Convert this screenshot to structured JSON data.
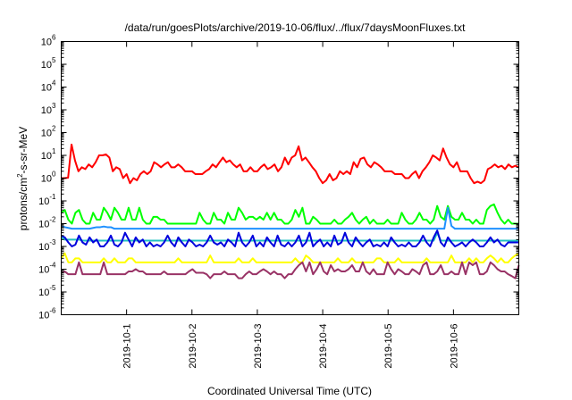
{
  "chart_data": {
    "type": "line",
    "title": "/data/run/goesPlots/archive/2019-10-06/flux/../flux/7daysMoonFluxes.txt",
    "xlabel": "Coordinated Universal Time (UTC)",
    "ylabel": "protons/cm²-s-sr-MeV",
    "ylabel_parts": [
      "protons/cm",
      "2",
      "-s-sr-MeV"
    ],
    "yscale": "log",
    "ylim_exp": [
      -6,
      6
    ],
    "xlim_days": [
      0,
      7
    ],
    "xticks": [
      {
        "day": 1,
        "label": "2019-10-1"
      },
      {
        "day": 2,
        "label": "2019-10-2"
      },
      {
        "day": 3,
        "label": "2019-10-3"
      },
      {
        "day": 4,
        "label": "2019-10-4"
      },
      {
        "day": 5,
        "label": "2019-10-5"
      },
      {
        "day": 6,
        "label": "2019-10-6"
      }
    ],
    "ytick_base": "10",
    "grid": false,
    "legend": "none",
    "series": [
      {
        "color": "#ff0000",
        "values": [
          1.0,
          1.0,
          1.05,
          30,
          6,
          2,
          3,
          2.5,
          4,
          3,
          5,
          10,
          10,
          11,
          8,
          2,
          3,
          2.5,
          1,
          1.5,
          0.6,
          1,
          0.8,
          1.5,
          2,
          1.5,
          2,
          5,
          4,
          3,
          4,
          5,
          3,
          3,
          4,
          3,
          2,
          2,
          2,
          1.5,
          1.5,
          1.5,
          2,
          2.5,
          4,
          3,
          5,
          8,
          5,
          6,
          4,
          3,
          4,
          2,
          2,
          3,
          2,
          2,
          3,
          4,
          2.5,
          3,
          4,
          2,
          3,
          8,
          4,
          8,
          10,
          25,
          6,
          8,
          5,
          3,
          2,
          1,
          0.6,
          0.8,
          1.5,
          0.8,
          1,
          2,
          1.5,
          2,
          1.5,
          5,
          3,
          7,
          8,
          4,
          3,
          5,
          4,
          3,
          2,
          2,
          2,
          1.5,
          1.5,
          1.5,
          1,
          1,
          1.5,
          2,
          1,
          2,
          3,
          5,
          10,
          8,
          6,
          20,
          8,
          4,
          3,
          5,
          2,
          2,
          2,
          1,
          0.6,
          0.7,
          0.6,
          0.8,
          2.5,
          3,
          4,
          3,
          3.5,
          2.5,
          4,
          3,
          3.5,
          3
        ]
      },
      {
        "color": "#00ff00",
        "values": [
          0.03,
          0.04,
          0.015,
          0.01,
          0.03,
          0.04,
          0.015,
          0.01,
          0.01,
          0.03,
          0.015,
          0.015,
          0.05,
          0.03,
          0.015,
          0.05,
          0.03,
          0.015,
          0.015,
          0.05,
          0.015,
          0.015,
          0.05,
          0.015,
          0.01,
          0.01,
          0.02,
          0.02,
          0.015,
          0.015,
          0.01,
          0.01,
          0.01,
          0.01,
          0.01,
          0.01,
          0.01,
          0.01,
          0.01,
          0.03,
          0.015,
          0.01,
          0.01,
          0.03,
          0.015,
          0.015,
          0.01,
          0.03,
          0.015,
          0.015,
          0.05,
          0.03,
          0.015,
          0.02,
          0.02,
          0.015,
          0.02,
          0.015,
          0.03,
          0.015,
          0.03,
          0.015,
          0.015,
          0.01,
          0.01,
          0.015,
          0.04,
          0.02,
          0.05,
          0.01,
          0.01,
          0.02,
          0.015,
          0.01,
          0.01,
          0.01,
          0.01,
          0.015,
          0.01,
          0.01,
          0.015,
          0.02,
          0.03,
          0.015,
          0.01,
          0.015,
          0.02,
          0.01,
          0.015,
          0.01,
          0.01,
          0.01,
          0.015,
          0.01,
          0.01,
          0.01,
          0.03,
          0.015,
          0.01,
          0.01,
          0.015,
          0.03,
          0.015,
          0.015,
          0.01,
          0.015,
          0.06,
          0.02,
          0.015,
          0.06,
          0.02,
          0.015,
          0.015,
          0.03,
          0.015,
          0.015,
          0.01,
          0.015,
          0.01,
          0.01,
          0.04,
          0.06,
          0.07,
          0.03,
          0.015,
          0.01,
          0.015,
          0.01,
          0.01,
          0.01
        ]
      },
      {
        "color": "#1e90ff",
        "values": [
          0.008,
          0.007,
          0.0065,
          0.006,
          0.006,
          0.006,
          0.006,
          0.006,
          0.006,
          0.0065,
          0.007,
          0.007,
          0.0075,
          0.007,
          0.007,
          0.006,
          0.006,
          0.006,
          0.006,
          0.006,
          0.006,
          0.006,
          0.006,
          0.006,
          0.006,
          0.006,
          0.006,
          0.006,
          0.006,
          0.006,
          0.006,
          0.006,
          0.006,
          0.006,
          0.006,
          0.006,
          0.006,
          0.006,
          0.006,
          0.006,
          0.006,
          0.006,
          0.006,
          0.006,
          0.006,
          0.006,
          0.006,
          0.006,
          0.006,
          0.006,
          0.006,
          0.006,
          0.006,
          0.006,
          0.006,
          0.006,
          0.006,
          0.006,
          0.006,
          0.006,
          0.006,
          0.006,
          0.006,
          0.006,
          0.006,
          0.006,
          0.006,
          0.006,
          0.006,
          0.006,
          0.006,
          0.006,
          0.006,
          0.006,
          0.006,
          0.006,
          0.006,
          0.006,
          0.006,
          0.006,
          0.006,
          0.006,
          0.006,
          0.006,
          0.006,
          0.006,
          0.006,
          0.006,
          0.006,
          0.006,
          0.006,
          0.006,
          0.006,
          0.006,
          0.006,
          0.006,
          0.006,
          0.006,
          0.006,
          0.006,
          0.006,
          0.006,
          0.006,
          0.006,
          0.006,
          0.006,
          0.006,
          0.006,
          0.006,
          0.05,
          0.008,
          0.006,
          0.006,
          0.006,
          0.006,
          0.006,
          0.006,
          0.006,
          0.006,
          0.006,
          0.006,
          0.006,
          0.006,
          0.006,
          0.006,
          0.006,
          0.006,
          0.006,
          0.006,
          0.006
        ]
      },
      {
        "color": "#20c0c0",
        "values": [
          0.0025,
          0.002,
          0.002,
          0.002,
          0.002,
          0.002,
          0.0018,
          0.0018,
          0.0018,
          0.0018,
          0.0018,
          0.0018,
          0.0018,
          0.0018,
          0.0018,
          0.0018,
          0.0018,
          0.0018,
          0.0018,
          0.0018,
          0.0018,
          0.0018,
          0.0018,
          0.0018,
          0.0018,
          0.0018,
          0.0018,
          0.0018,
          0.0018,
          0.0018,
          0.0018,
          0.0018,
          0.0018,
          0.0018,
          0.0018,
          0.0018,
          0.0018,
          0.0018,
          0.0018,
          0.0018,
          0.0018,
          0.0018,
          0.0018,
          0.0018,
          0.0018,
          0.0018,
          0.0018,
          0.0018,
          0.0018,
          0.0018,
          0.0018,
          0.0018,
          0.0018,
          0.0018,
          0.0018,
          0.0018,
          0.0018,
          0.0018,
          0.0018,
          0.0018,
          0.0018,
          0.0018,
          0.0018,
          0.0018,
          0.0018,
          0.0018,
          0.0018,
          0.0018,
          0.0018,
          0.0018,
          0.0018,
          0.0018,
          0.0018,
          0.0018,
          0.0018,
          0.0018,
          0.0018,
          0.0018,
          0.0018,
          0.0018,
          0.0018,
          0.0018,
          0.0018,
          0.0018,
          0.0018,
          0.0018,
          0.0018,
          0.0018,
          0.0018,
          0.0018,
          0.0018,
          0.0018,
          0.0018,
          0.0018,
          0.0018,
          0.0018,
          0.0018,
          0.0018,
          0.0018,
          0.0018,
          0.0018,
          0.0018,
          0.0018,
          0.0018,
          0.0018,
          0.0018,
          0.004,
          0.0018,
          0.0018,
          0.0018,
          0.0018,
          0.0018,
          0.0018,
          0.0018,
          0.0018,
          0.0018,
          0.0018,
          0.0018,
          0.0018,
          0.0018,
          0.0018,
          0.0018,
          0.0018,
          0.0018,
          0.0018,
          0.0018,
          0.0018,
          0.0018,
          0.0018,
          0.0018
        ]
      },
      {
        "color": "#0000dd",
        "values": [
          0.003,
          0.0025,
          0.0015,
          0.001,
          0.0012,
          0.003,
          0.0015,
          0.0012,
          0.0025,
          0.0015,
          0.002,
          0.001,
          0.001,
          0.0015,
          0.003,
          0.0012,
          0.001,
          0.0015,
          0.004,
          0.002,
          0.001,
          0.0025,
          0.0015,
          0.002,
          0.001,
          0.0015,
          0.001,
          0.0012,
          0.001,
          0.0015,
          0.003,
          0.0015,
          0.001,
          0.0025,
          0.0015,
          0.001,
          0.002,
          0.0015,
          0.001,
          0.0012,
          0.001,
          0.0015,
          0.003,
          0.0015,
          0.0012,
          0.0015,
          0.001,
          0.002,
          0.0015,
          0.001,
          0.004,
          0.0015,
          0.001,
          0.0015,
          0.003,
          0.001,
          0.0015,
          0.001,
          0.0025,
          0.0015,
          0.001,
          0.003,
          0.0012,
          0.001,
          0.0015,
          0.001,
          0.0015,
          0.003,
          0.001,
          0.0015,
          0.004,
          0.001,
          0.0015,
          0.002,
          0.001,
          0.0015,
          0.001,
          0.003,
          0.0012,
          0.0015,
          0.004,
          0.0015,
          0.001,
          0.0025,
          0.0015,
          0.001,
          0.0015,
          0.002,
          0.001,
          0.0012,
          0.001,
          0.0015,
          0.001,
          0.0025,
          0.0015,
          0.001,
          0.0012,
          0.001,
          0.0015,
          0.001,
          0.001,
          0.0015,
          0.003,
          0.0015,
          0.001,
          0.0025,
          0.005,
          0.0015,
          0.001,
          0.0025,
          0.0015,
          0.001,
          0.0012,
          0.0015,
          0.001,
          0.0015,
          0.002,
          0.0015,
          0.001,
          0.001,
          0.0015,
          0.0025,
          0.0015,
          0.002,
          0.0012,
          0.001,
          0.0015,
          0.0015,
          0.0015,
          0.0015
        ]
      },
      {
        "color": "#ffff00",
        "values": [
          0.0003,
          0.0005,
          0.0002,
          0.0002,
          0.0003,
          0.0003,
          0.0002,
          0.0002,
          0.0002,
          0.0002,
          0.0002,
          0.0002,
          0.0003,
          0.0002,
          0.0002,
          0.0003,
          0.0002,
          0.0002,
          0.0002,
          0.0003,
          0.0003,
          0.0002,
          0.0002,
          0.0002,
          0.0002,
          0.0002,
          0.0002,
          0.0002,
          0.0002,
          0.0002,
          0.0002,
          0.0002,
          0.0002,
          0.0003,
          0.0002,
          0.0002,
          0.0002,
          0.0002,
          0.0002,
          0.0002,
          0.0002,
          0.0002,
          0.0004,
          0.0002,
          0.0002,
          0.0002,
          0.0002,
          0.0002,
          0.0002,
          0.0002,
          0.0003,
          0.0002,
          0.0002,
          0.0002,
          0.0003,
          0.0002,
          0.0002,
          0.0002,
          0.0002,
          0.0002,
          0.0002,
          0.0002,
          0.0002,
          0.0002,
          0.0002,
          0.0002,
          0.0003,
          0.0002,
          0.0002,
          0.0004,
          0.0003,
          0.0002,
          0.0002,
          0.0002,
          0.0002,
          0.0002,
          0.0002,
          0.0002,
          0.0003,
          0.0002,
          0.0002,
          0.0002,
          0.0003,
          0.0002,
          0.0002,
          0.0002,
          0.0002,
          0.0002,
          0.0002,
          0.0003,
          0.0003,
          0.0002,
          0.0002,
          0.0002,
          0.0002,
          0.0003,
          0.0002,
          0.0002,
          0.0002,
          0.0002,
          0.0002,
          0.0002,
          0.0002,
          0.0003,
          0.0002,
          0.0002,
          0.0002,
          0.0002,
          0.0002,
          0.0002,
          0.0004,
          0.0002,
          0.0002,
          0.0002,
          0.0002,
          0.0003,
          0.0002,
          0.0003,
          0.0002,
          0.0002,
          0.0003,
          0.0004,
          0.0003,
          0.0002,
          0.0003,
          0.0002,
          0.0002,
          0.0003,
          0.0004,
          0.0005
        ]
      },
      {
        "color": "#993366",
        "values": [
          7e-05,
          8e-05,
          6e-05,
          6e-05,
          6e-05,
          0.0002,
          6e-05,
          6e-05,
          6e-05,
          6e-05,
          6e-05,
          6e-05,
          0.0002,
          6e-05,
          6e-05,
          6e-05,
          6e-05,
          6e-05,
          6e-05,
          8e-05,
          8e-05,
          0.0001,
          8e-05,
          8e-05,
          6e-05,
          6e-05,
          6e-05,
          6e-05,
          6e-05,
          8e-05,
          6e-05,
          6e-05,
          6e-05,
          6e-05,
          6e-05,
          6e-05,
          8e-05,
          0.0001,
          7e-05,
          7e-05,
          7e-05,
          6e-05,
          4e-05,
          6e-05,
          6e-05,
          6e-05,
          8e-05,
          6e-05,
          6e-05,
          6e-05,
          4e-05,
          4e-05,
          6e-05,
          8e-05,
          6e-05,
          6e-05,
          8e-05,
          0.0001,
          8e-05,
          6e-05,
          8e-05,
          6e-05,
          6e-05,
          4e-05,
          6e-05,
          6e-05,
          0.0001,
          0.00015,
          0.0002,
          8e-05,
          0.0002,
          6e-05,
          0.0001,
          0.0002,
          8e-05,
          6e-05,
          0.00015,
          8e-05,
          0.0001,
          8e-05,
          8e-05,
          0.0001,
          0.00015,
          8e-05,
          8e-05,
          0.0002,
          8e-05,
          6e-05,
          0.0001,
          6e-05,
          6e-05,
          6e-05,
          0.0002,
          0.0001,
          6e-05,
          0.0001,
          8e-05,
          6e-05,
          6e-05,
          0.0001,
          8e-05,
          6e-05,
          0.00015,
          0.0002,
          6e-05,
          6e-05,
          8e-05,
          0.00015,
          6e-05,
          6e-05,
          8e-05,
          6e-05,
          6e-05,
          0.0002,
          6e-05,
          0.0002,
          0.00015,
          0.0002,
          6e-05,
          6e-05,
          8e-05,
          0.0002,
          0.00015,
          0.0001,
          8e-05,
          8e-05,
          6e-05,
          5e-05,
          4e-05,
          0.00015
        ]
      }
    ]
  }
}
